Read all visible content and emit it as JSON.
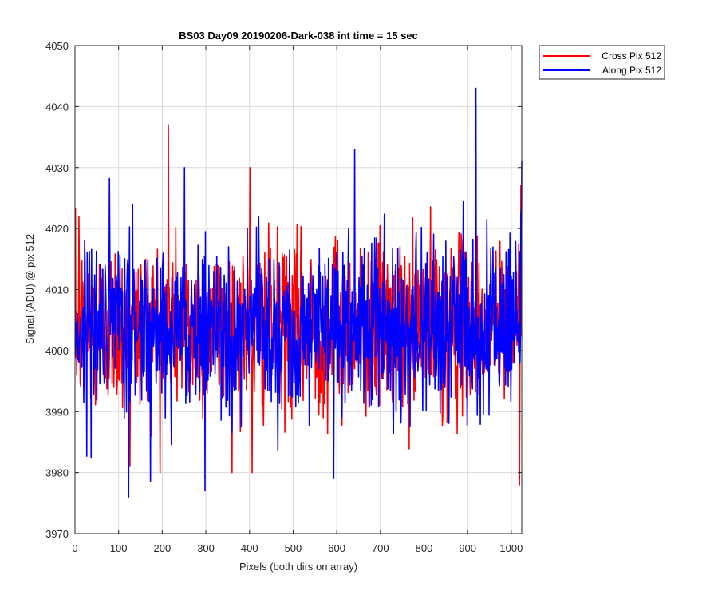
{
  "chart_data": {
    "type": "line",
    "title": "BS03 Day09 20190206-Dark-038 int time = 15 sec",
    "xlabel": "Pixels (both dirs on array)",
    "ylabel": "Signal (ADU) @ pix 512",
    "xlim": [
      0,
      1024
    ],
    "ylim": [
      3970,
      4050
    ],
    "xticks": [
      0,
      100,
      200,
      300,
      400,
      500,
      600,
      700,
      800,
      900,
      1000
    ],
    "yticks": [
      3970,
      3980,
      3990,
      4000,
      4010,
      4020,
      4030,
      4040,
      4050
    ],
    "grid": true,
    "legend_position": "outside-top-right",
    "series": [
      {
        "name": "Cross Pix 512",
        "color": "#ff0000",
        "generated": "noise",
        "points": 1024,
        "mean": 4004,
        "range": [
          3978,
          4037
        ],
        "peaks": [
          [
            213,
            4037
          ],
          [
            400,
            4030
          ],
          [
            8,
            4022
          ],
          [
            125,
            3981
          ],
          [
            405,
            3980
          ],
          [
            1018,
            3978
          ],
          [
            1021,
            4027
          ]
        ]
      },
      {
        "name": "Along Pix 512",
        "color": "#0000ff",
        "generated": "noise",
        "points": 1024,
        "mean": 4004,
        "range": [
          3976,
          4043
        ],
        "peaks": [
          [
            918,
            4043
          ],
          [
            640,
            4033
          ],
          [
            250,
            4030
          ],
          [
            122,
            3976
          ],
          [
            297,
            3977
          ],
          [
            592,
            3979
          ],
          [
            1024,
            4031
          ]
        ]
      }
    ]
  }
}
